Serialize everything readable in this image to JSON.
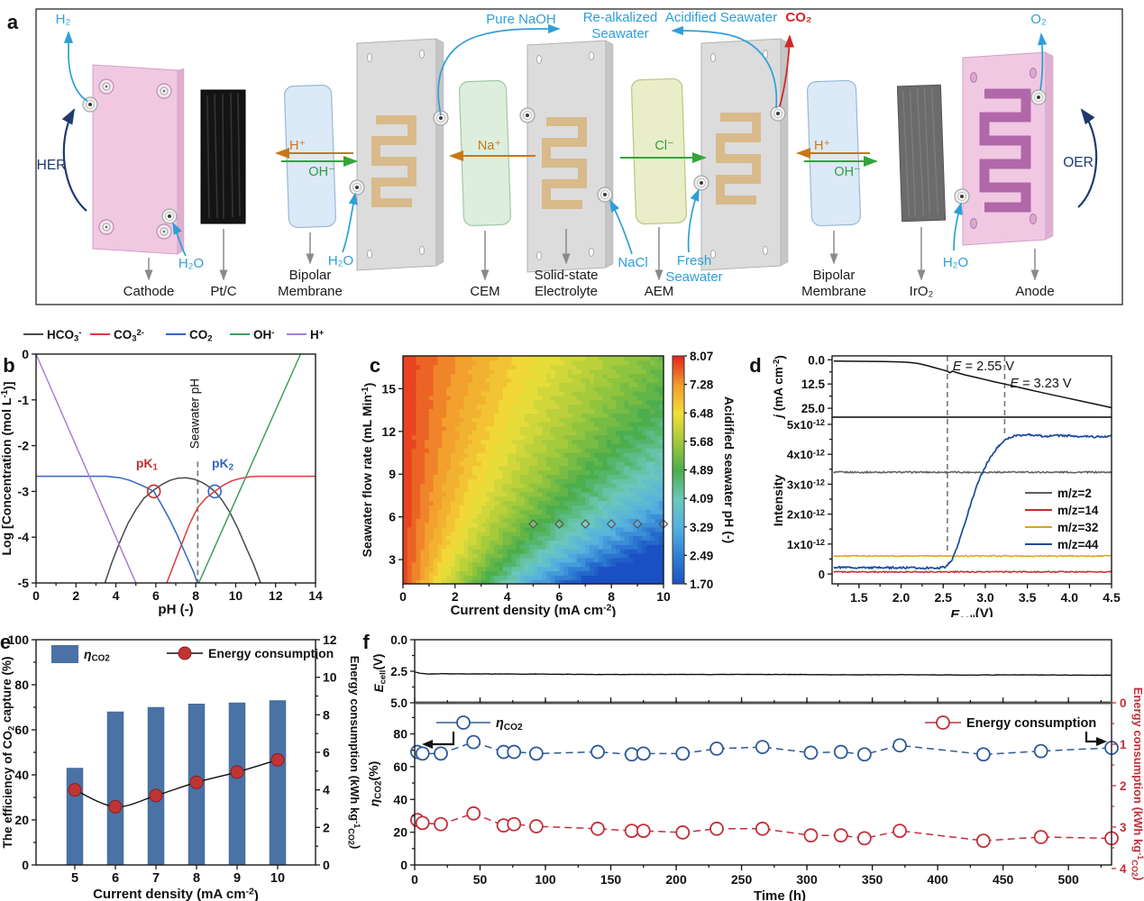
{
  "panels": {
    "a": "a",
    "b": "b",
    "c": "c",
    "d": "d",
    "e": "e",
    "f": "f"
  },
  "panel_a": {
    "flow_labels": {
      "h2": "H₂",
      "h2o": "H₂O",
      "pure_naoh": "Pure NaOH",
      "realkalized_line1": "Re-alkalized",
      "realkalized_line2": "Seawater",
      "acidified_seawater": "Acidified Seawater",
      "co2": "CO₂",
      "o2": "O₂",
      "nacl": "NaCl",
      "fresh_line1": "Fresh",
      "fresh_line2": "Seawater"
    },
    "ion_labels": {
      "h_plus": "H⁺",
      "oh_minus": "OH⁻",
      "na_plus": "Na⁺",
      "cl_minus": "Cl⁻"
    },
    "reaction_labels": {
      "her": "HER",
      "oer": "OER"
    },
    "component_labels": {
      "cathode": "Cathode",
      "pt_c": "Pt/C",
      "bipolar_line1": "Bipolar",
      "bipolar_line2": "Membrane",
      "cem": "CEM",
      "sse_line1": "Solid-state",
      "sse_line2": "Electrolyte",
      "aem": "AEM",
      "iro2": "IrO₂",
      "anode": "Anode"
    },
    "colors": {
      "flow_blue": "#2e9fd8",
      "co2_red": "#d42525",
      "ion_orange": "#c87818",
      "ion_green": "#2fa03c",
      "reaction_navy": "#1f3a6e"
    }
  },
  "chart_data": {
    "b": {
      "type": "line",
      "xlabel": "pH (-)",
      "ylabel": "Log [Concentration (mol L^{-1})]",
      "xlim": [
        0,
        14
      ],
      "ylim": [
        -5,
        0
      ],
      "xticks": [
        0,
        2,
        4,
        6,
        8,
        10,
        12,
        14
      ],
      "yticks": [
        0,
        -1,
        -2,
        -3,
        -4,
        -5
      ],
      "series": [
        {
          "name": "HCO_{3}^{-}",
          "color": "#4a4a4a",
          "points": [
            [
              3.45,
              -5
            ],
            [
              3.8,
              -4.55
            ],
            [
              4.2,
              -4.1
            ],
            [
              4.6,
              -3.7
            ],
            [
              5.0,
              -3.4
            ],
            [
              5.4,
              -3.15
            ],
            [
              5.9,
              -2.97
            ],
            [
              6.3,
              -2.85
            ],
            [
              6.7,
              -2.76
            ],
            [
              7.1,
              -2.71
            ],
            [
              7.5,
              -2.7
            ],
            [
              7.9,
              -2.73
            ],
            [
              8.3,
              -2.8
            ],
            [
              8.6,
              -2.88
            ],
            [
              8.95,
              -3.0
            ],
            [
              9.3,
              -3.18
            ],
            [
              9.7,
              -3.45
            ],
            [
              10.1,
              -3.8
            ],
            [
              10.5,
              -4.2
            ],
            [
              10.9,
              -4.6
            ],
            [
              11.25,
              -5
            ]
          ]
        },
        {
          "name": "CO_{3}^{2-}",
          "color": "#e03a3a",
          "points": [
            [
              6.55,
              -5
            ],
            [
              6.9,
              -4.6
            ],
            [
              7.3,
              -4.15
            ],
            [
              7.7,
              -3.7
            ],
            [
              8.1,
              -3.35
            ],
            [
              8.5,
              -3.15
            ],
            [
              8.95,
              -3.0
            ],
            [
              9.4,
              -2.86
            ],
            [
              9.8,
              -2.77
            ],
            [
              10.2,
              -2.72
            ],
            [
              10.7,
              -2.68
            ],
            [
              11.2,
              -2.67
            ],
            [
              14,
              -2.67
            ]
          ]
        },
        {
          "name": "CO_{2}",
          "color": "#3465c0",
          "points": [
            [
              0,
              -2.67
            ],
            [
              3.5,
              -2.67
            ],
            [
              4.2,
              -2.7
            ],
            [
              4.7,
              -2.76
            ],
            [
              5.2,
              -2.85
            ],
            [
              5.6,
              -2.93
            ],
            [
              5.9,
              -3.0
            ],
            [
              6.3,
              -3.3
            ],
            [
              6.7,
              -3.62
            ],
            [
              7.1,
              -3.98
            ],
            [
              7.5,
              -4.38
            ],
            [
              7.9,
              -4.77
            ],
            [
              8.08,
              -5
            ]
          ]
        },
        {
          "name": "OH^{-}",
          "color": "#3f9e5f",
          "points": [
            [
              8.15,
              -5
            ],
            [
              13.25,
              0
            ]
          ]
        },
        {
          "name": "H^{+}",
          "color": "#a87fd0",
          "points": [
            [
              0,
              0
            ],
            [
              5,
              -5
            ]
          ]
        }
      ],
      "seawater_ph": {
        "x": 8.1,
        "label": "Seawater pH"
      },
      "pk1": {
        "x": 5.9,
        "y": -3,
        "label": "pK_{1}",
        "color": "#c03030"
      },
      "pk2": {
        "x": 8.95,
        "y": -3,
        "label": "pK_{2}",
        "color": "#3465c0"
      }
    },
    "c": {
      "type": "heatmap",
      "xlabel": "Current density (mA cm^{-2})",
      "ylabel": "Seawater flow rate (mL Min^{-1})",
      "colorbar_label": "Acidified seawater pH (-)",
      "xlim": [
        0,
        10
      ],
      "ylim": [
        1.3,
        17.3
      ],
      "xticks": [
        0,
        2,
        4,
        6,
        8,
        10
      ],
      "yticks": [
        3,
        6,
        9,
        12,
        15
      ],
      "ph_min": 1.7,
      "ph_max": 8.07,
      "colorbar_ticks": [
        "8.07",
        "7.28",
        "6.48",
        "5.68",
        "4.89",
        "4.09",
        "3.29",
        "2.49",
        "1.70"
      ],
      "model": {
        "a": 5.18,
        "b": 1.215,
        "gamma": 0.9
      },
      "jet_stops": [
        [
          0,
          "#1a50c4"
        ],
        [
          0.125,
          "#2f7fd2"
        ],
        [
          0.25,
          "#55b0e0"
        ],
        [
          0.375,
          "#6cc8bc"
        ],
        [
          0.5,
          "#4cae4c"
        ],
        [
          0.625,
          "#9fc93c"
        ],
        [
          0.75,
          "#f2e03a"
        ],
        [
          0.875,
          "#f29c2d"
        ],
        [
          1,
          "#e4251c"
        ]
      ],
      "sample_markers": {
        "y": 5.5,
        "x": [
          5,
          6,
          7,
          8,
          9,
          10
        ]
      }
    },
    "d": {
      "type": "line",
      "xlabel": "*E*_{cell}(V)",
      "xlim": [
        1.18,
        4.5
      ],
      "xtick_labels": [
        "1.5",
        "2.0",
        "2.5",
        "3.0",
        "3.5",
        "4.0",
        "4.5"
      ],
      "xtick_vals": [
        1.5,
        2,
        2.5,
        3,
        3.5,
        4,
        4.5
      ],
      "top": {
        "ylabel": "*j* (mA cm^{-2})",
        "ytick_labels": [
          "0.0",
          "12.5",
          "25.0"
        ],
        "ytick_vals": [
          0,
          12.5,
          25
        ],
        "ylim": [
          -2,
          29.6
        ],
        "curve": [
          [
            1.2,
            0.7
          ],
          [
            1.5,
            0.8
          ],
          [
            1.8,
            0.95
          ],
          [
            2.0,
            1.1
          ],
          [
            2.1,
            1.35
          ],
          [
            2.2,
            1.9
          ],
          [
            2.3,
            2.9
          ],
          [
            2.4,
            4.1
          ],
          [
            2.5,
            5.3
          ],
          [
            2.55,
            5.9
          ],
          [
            2.58,
            6.7
          ],
          [
            2.61,
            5.9
          ],
          [
            2.66,
            6.6
          ],
          [
            2.75,
            7.7
          ],
          [
            2.9,
            9.2
          ],
          [
            3.0,
            10.2
          ],
          [
            3.1,
            11.3
          ],
          [
            3.23,
            12.5
          ],
          [
            3.4,
            14.2
          ],
          [
            3.6,
            16.2
          ],
          [
            3.8,
            18.1
          ],
          [
            4.0,
            20.0
          ],
          [
            4.2,
            21.9
          ],
          [
            4.35,
            23.3
          ],
          [
            4.5,
            24.7
          ]
        ]
      },
      "bottom": {
        "ylabel": "Intensity",
        "ytick_labels": [
          "0",
          "1x10^{-12}",
          "2x10^{-12}",
          "3x10^{-12}",
          "4x10^{-12}",
          "5x10^{-12}"
        ],
        "ytick_vals": [
          0,
          1,
          2,
          3,
          4,
          5
        ],
        "ylim": [
          -0.33,
          5.24
        ],
        "series": [
          {
            "name": "m/z=2",
            "color": "#5f5f5f",
            "flat": 3.4,
            "noise": 0.025
          },
          {
            "name": "m/z=14",
            "color": "#c03030",
            "flat": 0.07,
            "noise": 0.02
          },
          {
            "name": "m/z=32",
            "color": "#d7a51f",
            "flat": 0.6,
            "noise": 0.02
          },
          {
            "name": "m/z=44",
            "color": "#1d4a9e",
            "noise": 0.03,
            "points": [
              [
                1.2,
                0.22
              ],
              [
                1.6,
                0.21
              ],
              [
                2.0,
                0.21
              ],
              [
                2.3,
                0.2
              ],
              [
                2.45,
                0.2
              ],
              [
                2.53,
                0.24
              ],
              [
                2.6,
                0.45
              ],
              [
                2.66,
                0.85
              ],
              [
                2.72,
                1.35
              ],
              [
                2.8,
                2.1
              ],
              [
                2.88,
                2.8
              ],
              [
                2.95,
                3.3
              ],
              [
                3.05,
                3.85
              ],
              [
                3.15,
                4.25
              ],
              [
                3.25,
                4.5
              ],
              [
                3.35,
                4.62
              ],
              [
                3.5,
                4.66
              ],
              [
                3.7,
                4.6
              ],
              [
                3.9,
                4.63
              ],
              [
                4.1,
                4.6
              ],
              [
                4.3,
                4.58
              ],
              [
                4.5,
                4.61
              ]
            ]
          }
        ]
      },
      "annotations": [
        {
          "x": 2.55,
          "label": "*E* = 2.55 V",
          "line_bottom": 0.75
        },
        {
          "x": 3.23,
          "label": "*E* = 3.23 V",
          "line_bottom": 4.62
        }
      ]
    },
    "e": {
      "type": "bar",
      "categories": [
        "5",
        "6",
        "7",
        "8",
        "9",
        "10"
      ],
      "xlabel": "Current density (mA cm^{-2})",
      "ylabel_left": "The efficiency of CO_{2} capture (%)",
      "ylabel_right": "Energy consumption (kWh kg^{-1}_{CO2})",
      "ylim_left": [
        0,
        100
      ],
      "yticks_left": [
        0,
        20,
        40,
        60,
        80,
        100
      ],
      "ylim_right": [
        0,
        12
      ],
      "yticks_right": [
        0,
        2,
        4,
        6,
        8,
        10,
        12
      ],
      "bar_series": {
        "name": "*η*_{CO2}",
        "color": "#4a72a5",
        "values": [
          43,
          68,
          70,
          71.5,
          72,
          73
        ]
      },
      "line_series": {
        "name": "Energy consumption",
        "color": "#c03434",
        "values": [
          4.0,
          3.1,
          3.7,
          4.4,
          4.95,
          5.6
        ]
      }
    },
    "f": {
      "type": "line",
      "xlabel": "Time (h)",
      "xlim": [
        0,
        533
      ],
      "xticks": [
        0,
        50,
        100,
        150,
        200,
        250,
        300,
        350,
        400,
        450,
        500
      ],
      "top": {
        "ylabel": "*E*_{cell}(V)",
        "ytick_labels": [
          "0.0",
          "2.5",
          "5.0"
        ],
        "ytick_vals": [
          0,
          2.5,
          5
        ],
        "ylim": [
          0,
          5
        ],
        "curve": [
          [
            0,
            2.56
          ],
          [
            4,
            2.66
          ],
          [
            10,
            2.72
          ],
          [
            20,
            2.7
          ],
          [
            40,
            2.71
          ],
          [
            70,
            2.72
          ],
          [
            100,
            2.73
          ],
          [
            130,
            2.75
          ],
          [
            160,
            2.76
          ],
          [
            190,
            2.75
          ],
          [
            220,
            2.76
          ],
          [
            250,
            2.75
          ],
          [
            280,
            2.76
          ],
          [
            310,
            2.77
          ],
          [
            340,
            2.78
          ],
          [
            370,
            2.77
          ],
          [
            400,
            2.79
          ],
          [
            430,
            2.8
          ],
          [
            460,
            2.79
          ],
          [
            490,
            2.8
          ],
          [
            515,
            2.81
          ],
          [
            533,
            2.81
          ]
        ]
      },
      "bottom": {
        "ylabel_left": "*η*_{CO2}(%)",
        "yticks_left": [
          0,
          20,
          40,
          60,
          80
        ],
        "ylim_left": [
          0,
          99
        ],
        "ylabel_right": "Energy consumption (kWh kg^{-1}_{CO2})",
        "yticks_right": [
          0,
          1,
          2,
          3,
          4
        ],
        "ylim_right": [
          0,
          4
        ],
        "time": [
          2,
          6,
          20,
          45,
          68,
          76,
          93,
          140,
          166,
          175,
          205,
          231,
          266,
          303,
          326,
          344,
          371,
          435,
          479,
          533
        ],
        "eta": {
          "name": "*η*_{CO2}",
          "color": "#2e5a97",
          "values": [
            69,
            68,
            68,
            75,
            69,
            69,
            68,
            69,
            67.5,
            68,
            68,
            71,
            72,
            68.5,
            69,
            67.5,
            73,
            67.5,
            69.5,
            71.5
          ]
        },
        "energy": {
          "name": "Energy consumption",
          "color": "#c22f3a",
          "values": [
            2.83,
            2.9,
            2.93,
            2.67,
            2.96,
            2.93,
            2.98,
            3.04,
            3.09,
            3.09,
            3.13,
            3.04,
            3.04,
            3.2,
            3.2,
            3.27,
            3.09,
            3.33,
            3.24,
            3.27
          ]
        }
      }
    }
  }
}
